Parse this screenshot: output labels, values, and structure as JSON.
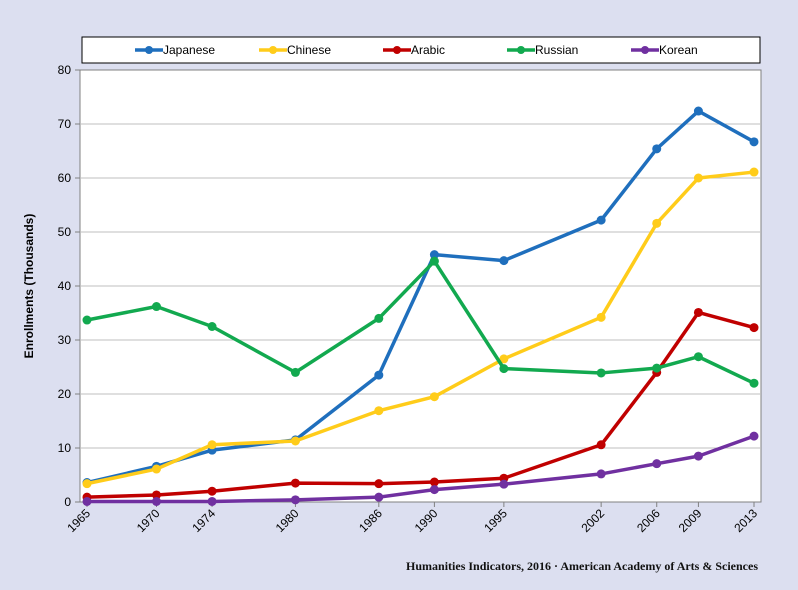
{
  "credit": "Humanities Indicators, 2016 · American Academy of Arts & Sciences",
  "chart_data": {
    "type": "line",
    "title": "",
    "xlabel": "",
    "ylabel": "Enrollments (Thousands)",
    "ylim": [
      0,
      80
    ],
    "yticks": [
      0,
      10,
      20,
      30,
      40,
      50,
      60,
      70,
      80
    ],
    "x": [
      1965,
      1970,
      1974,
      1980,
      1986,
      1990,
      1995,
      2002,
      2006,
      2009,
      2013
    ],
    "grid": "horizontal",
    "legend_position": "top",
    "series": [
      {
        "name": "Japanese",
        "color": "#1f6fbd",
        "values": [
          3.6,
          6.6,
          9.6,
          11.5,
          23.5,
          45.8,
          44.7,
          52.2,
          65.4,
          72.4,
          66.7
        ]
      },
      {
        "name": "Chinese",
        "color": "#ffcc1a",
        "values": [
          3.4,
          6.1,
          10.6,
          11.3,
          16.9,
          19.5,
          26.5,
          34.2,
          51.6,
          60.0,
          61.1
        ]
      },
      {
        "name": "Arabic",
        "color": "#c00000",
        "values": [
          0.9,
          1.3,
          2.0,
          3.5,
          3.4,
          3.7,
          4.4,
          10.6,
          24.0,
          35.1,
          32.3
        ]
      },
      {
        "name": "Russian",
        "color": "#12a94f",
        "values": [
          33.7,
          36.2,
          32.5,
          24.0,
          34.0,
          44.6,
          24.7,
          23.9,
          24.8,
          26.9,
          22.0
        ]
      },
      {
        "name": "Korean",
        "color": "#7030a0",
        "values": [
          0.1,
          0.1,
          0.1,
          0.4,
          0.9,
          2.3,
          3.3,
          5.2,
          7.1,
          8.5,
          12.2
        ]
      }
    ]
  }
}
